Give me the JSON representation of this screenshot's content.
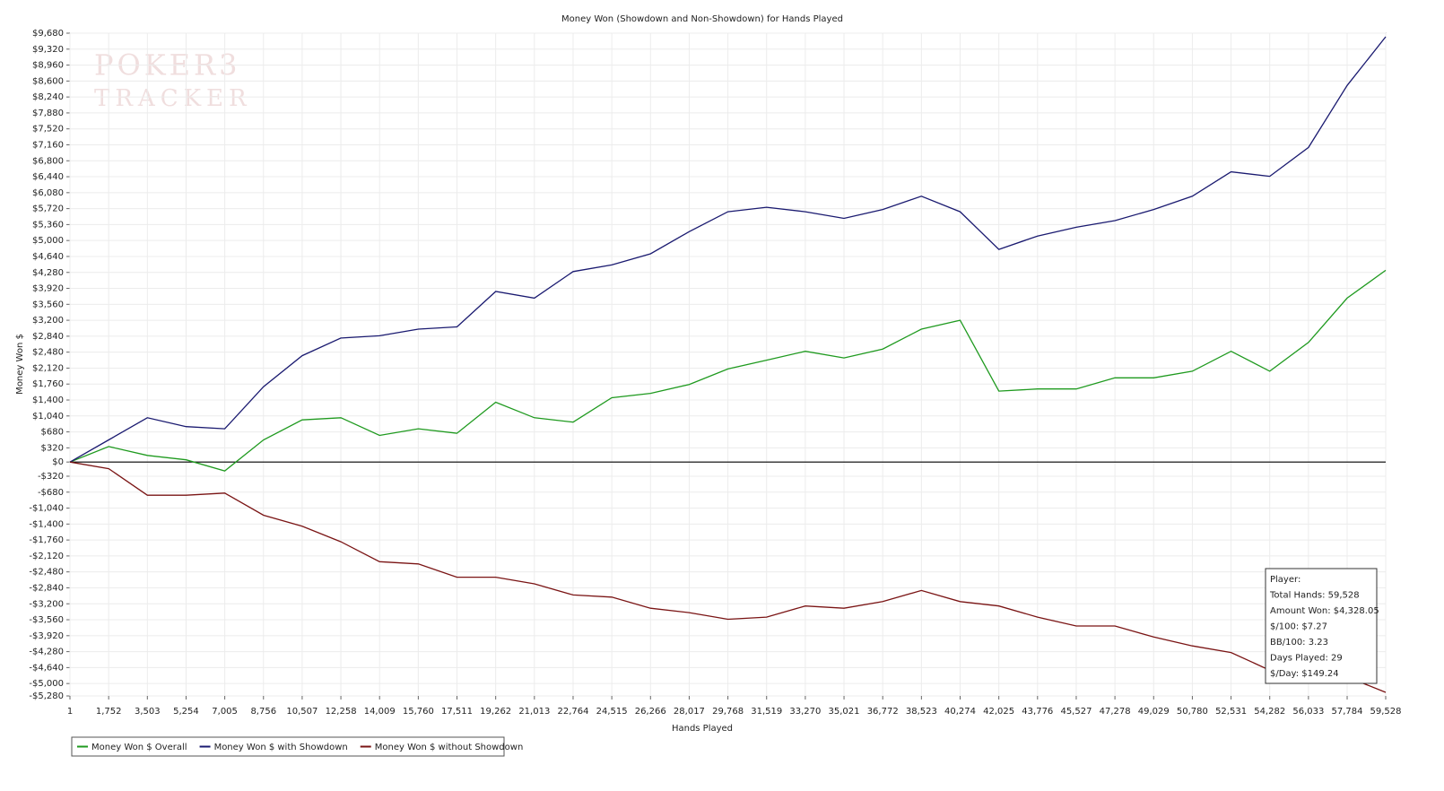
{
  "chart_data": {
    "type": "line",
    "title": "Money Won (Showdown and Non-Showdown) for Hands Played",
    "xlabel": "Hands Played",
    "ylabel": "Money Won $",
    "watermark": [
      "POKER3",
      "TRACKER"
    ],
    "x": [
      1,
      1752,
      3503,
      5254,
      7005,
      8756,
      10507,
      12258,
      14009,
      15760,
      17511,
      19262,
      21013,
      22764,
      24515,
      26266,
      28017,
      29768,
      31519,
      33270,
      35021,
      36772,
      38523,
      40274,
      42025,
      43776,
      45527,
      47278,
      49029,
      50780,
      52531,
      54282,
      56033,
      57784,
      59528
    ],
    "series": [
      {
        "name": "Money Won $ Overall",
        "color": "#1f9a1f",
        "values": [
          0,
          350,
          150,
          50,
          -200,
          500,
          950,
          1000,
          600,
          750,
          650,
          1350,
          1000,
          900,
          1450,
          1550,
          1750,
          2100,
          2300,
          2500,
          2350,
          2550,
          3000,
          3200,
          1600,
          1650,
          1650,
          1900,
          1900,
          2050,
          2500,
          2050,
          2700,
          3700,
          4328
        ]
      },
      {
        "name": "Money Won $ with Showdown",
        "color": "#1a1a70",
        "values": [
          0,
          500,
          1000,
          800,
          750,
          1700,
          2400,
          2800,
          2850,
          3000,
          3050,
          3850,
          3700,
          4300,
          4450,
          4700,
          5200,
          5650,
          5750,
          5650,
          5500,
          5700,
          6000,
          5650,
          4800,
          5100,
          5300,
          5450,
          5700,
          6000,
          6550,
          6450,
          7100,
          8500,
          9600
        ]
      },
      {
        "name": "Money Won $ without Showdown",
        "color": "#7a1414",
        "values": [
          0,
          -150,
          -750,
          -750,
          -700,
          -1200,
          -1450,
          -1800,
          -2250,
          -2300,
          -2600,
          -2600,
          -2750,
          -3000,
          -3050,
          -3300,
          -3400,
          -3550,
          -3500,
          -3250,
          -3300,
          -3150,
          -2900,
          -3150,
          -3250,
          -3500,
          -3700,
          -3700,
          -3950,
          -4150,
          -4300,
          -4700,
          -4700,
          -4850,
          -5200
        ]
      }
    ],
    "xlim": [
      1,
      59528
    ],
    "ylim": [
      -5280,
      9680
    ],
    "xticks": [
      1,
      {
        "value": 1752,
        "label": "1,752"
      },
      {
        "value": 3503,
        "label": "3,503"
      },
      {
        "value": 5254,
        "label": "5,254"
      },
      {
        "value": 7005,
        "label": "7,005"
      },
      {
        "value": 8756,
        "label": "8,756"
      },
      {
        "value": 10507,
        "label": "10,507"
      },
      {
        "value": 12258,
        "label": "12,258"
      },
      {
        "value": 14009,
        "label": "14,009"
      },
      {
        "value": 15760,
        "label": "15,760"
      },
      {
        "value": 17511,
        "label": "17,511"
      },
      {
        "value": 19262,
        "label": "19,262"
      },
      {
        "value": 21013,
        "label": "21,013"
      },
      {
        "value": 22764,
        "label": "22,764"
      },
      {
        "value": 24515,
        "label": "24,515"
      },
      {
        "value": 26266,
        "label": "26,266"
      },
      {
        "value": 28017,
        "label": "28,017"
      },
      {
        "value": 29768,
        "label": "29,768"
      },
      {
        "value": 31519,
        "label": "31,519"
      },
      {
        "value": 33270,
        "label": "33,270"
      },
      {
        "value": 35021,
        "label": "35,021"
      },
      {
        "value": 36772,
        "label": "36,772"
      },
      {
        "value": 38523,
        "label": "38,523"
      },
      {
        "value": 40274,
        "label": "40,274"
      },
      {
        "value": 42025,
        "label": "42,025"
      },
      {
        "value": 43776,
        "label": "43,776"
      },
      {
        "value": 45527,
        "label": "45,527"
      },
      {
        "value": 47278,
        "label": "47,278"
      },
      {
        "value": 49029,
        "label": "49,029"
      },
      {
        "value": 50780,
        "label": "50,780"
      },
      {
        "value": 52531,
        "label": "52,531"
      },
      {
        "value": 54282,
        "label": "54,282"
      },
      {
        "value": 56033,
        "label": "56,033"
      },
      {
        "value": 57784,
        "label": "57,784"
      },
      {
        "value": 59528,
        "label": "59,528"
      }
    ],
    "yticks": [
      {
        "value": 9680,
        "label": "$9,680"
      },
      {
        "value": 9320,
        "label": "$9,320"
      },
      {
        "value": 8960,
        "label": "$8,960"
      },
      {
        "value": 8600,
        "label": "$8,600"
      },
      {
        "value": 8240,
        "label": "$8,240"
      },
      {
        "value": 7880,
        "label": "$7,880"
      },
      {
        "value": 7520,
        "label": "$7,520"
      },
      {
        "value": 7160,
        "label": "$7,160"
      },
      {
        "value": 6800,
        "label": "$6,800"
      },
      {
        "value": 6440,
        "label": "$6,440"
      },
      {
        "value": 6080,
        "label": "$6,080"
      },
      {
        "value": 5720,
        "label": "$5,720"
      },
      {
        "value": 5360,
        "label": "$5,360"
      },
      {
        "value": 5000,
        "label": "$5,000"
      },
      {
        "value": 4640,
        "label": "$4,640"
      },
      {
        "value": 4280,
        "label": "$4,280"
      },
      {
        "value": 3920,
        "label": "$3,920"
      },
      {
        "value": 3560,
        "label": "$3,560"
      },
      {
        "value": 3200,
        "label": "$3,200"
      },
      {
        "value": 2840,
        "label": "$2,840"
      },
      {
        "value": 2480,
        "label": "$2,480"
      },
      {
        "value": 2120,
        "label": "$2,120"
      },
      {
        "value": 1760,
        "label": "$1,760"
      },
      {
        "value": 1400,
        "label": "$1,400"
      },
      {
        "value": 1040,
        "label": "$1,040"
      },
      {
        "value": 680,
        "label": "$680"
      },
      {
        "value": 320,
        "label": "$320"
      },
      {
        "value": 0,
        "label": "$0"
      },
      {
        "value": -320,
        "label": "-$320"
      },
      {
        "value": -680,
        "label": "-$680"
      },
      {
        "value": -1040,
        "label": "-$1,040"
      },
      {
        "value": -1400,
        "label": "-$1,400"
      },
      {
        "value": -1760,
        "label": "-$1,760"
      },
      {
        "value": -2120,
        "label": "-$2,120"
      },
      {
        "value": -2480,
        "label": "-$2,480"
      },
      {
        "value": -2840,
        "label": "-$2,840"
      },
      {
        "value": -3200,
        "label": "-$3,200"
      },
      {
        "value": -3560,
        "label": "-$3,560"
      },
      {
        "value": -3920,
        "label": "-$3,920"
      },
      {
        "value": -4280,
        "label": "-$4,280"
      },
      {
        "value": -4640,
        "label": "-$4,640"
      },
      {
        "value": -5000,
        "label": "-$5,000"
      },
      {
        "value": -5280,
        "label": "-$5,280"
      }
    ],
    "grid": true,
    "legend": "bottom-left",
    "info_box": [
      "Player:",
      "Total Hands: 59,528",
      "Amount Won: $4,328.05",
      "$/100: $7.27",
      "BB/100: 3.23",
      "Days Played: 29",
      "$/Day: $149.24"
    ]
  }
}
